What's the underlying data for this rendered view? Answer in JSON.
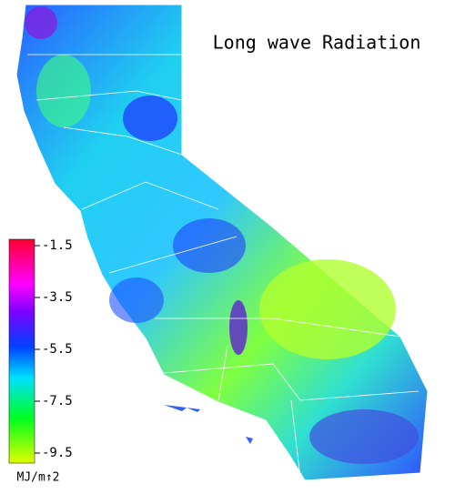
{
  "title": "Long wave Radiation",
  "colorbar": {
    "ticks": [
      -1.5,
      -3.5,
      -5.5,
      -7.5,
      -9.5
    ],
    "unit": "MJ/m↑2"
  }
}
